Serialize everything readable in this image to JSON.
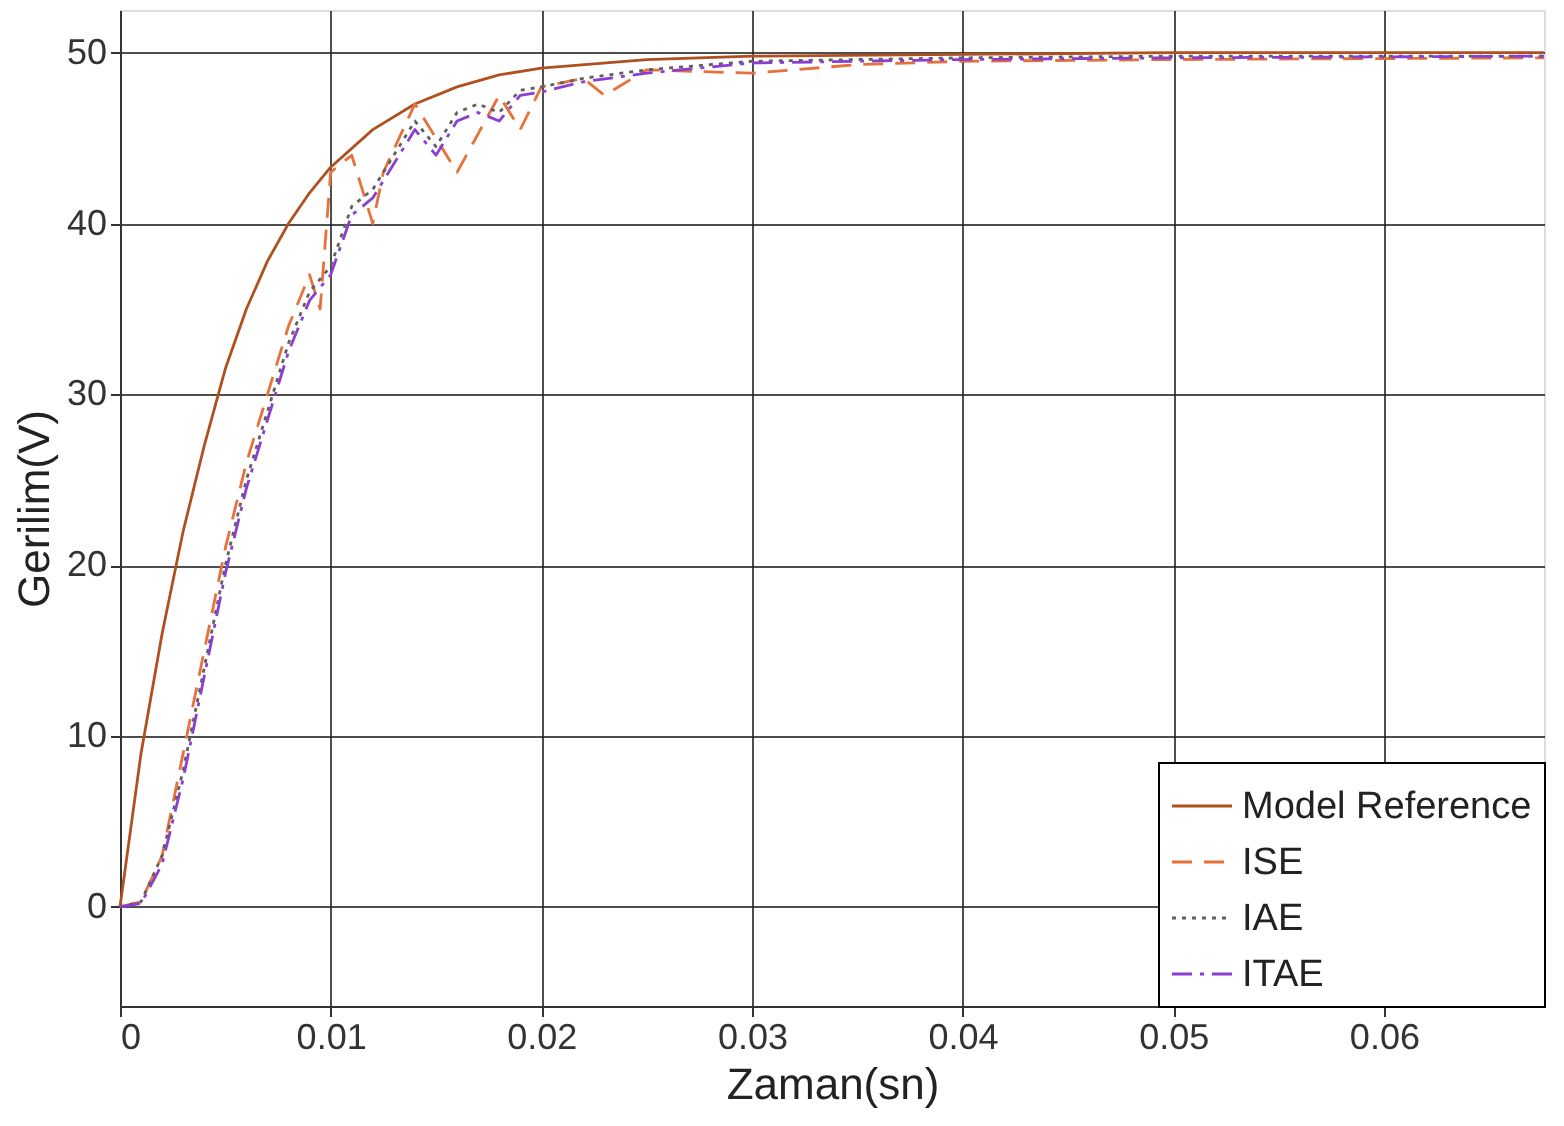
{
  "chart_data": {
    "type": "line",
    "xlabel": "Zaman(sn)",
    "ylabel": "Gerilim(V)",
    "xlim": [
      0,
      0.0676
    ],
    "ylim": [
      -5.8,
      52.5
    ],
    "xticks": [
      0,
      0.01,
      0.02,
      0.03,
      0.04,
      0.05,
      0.06
    ],
    "yticks": [
      0,
      10,
      20,
      30,
      40,
      50
    ],
    "grid": true,
    "legend": "bottom right",
    "marker": "none",
    "series": [
      {
        "name": "Model Reference",
        "color": "#b0501e",
        "line_style": "solid",
        "x": [
          0,
          0.001,
          0.002,
          0.003,
          0.004,
          0.005,
          0.006,
          0.007,
          0.008,
          0.009,
          0.01,
          0.012,
          0.014,
          0.016,
          0.018,
          0.02,
          0.025,
          0.03,
          0.04,
          0.05,
          0.0676
        ],
        "values": [
          0,
          9,
          16,
          22,
          27,
          31.5,
          35,
          37.8,
          40,
          41.8,
          43.3,
          45.5,
          47,
          48,
          48.7,
          49.1,
          49.6,
          49.8,
          49.9,
          50,
          50
        ]
      },
      {
        "name": "ISE",
        "color": "#e8703a",
        "line_style": "dashed",
        "x": [
          0,
          0.001,
          0.002,
          0.003,
          0.004,
          0.005,
          0.006,
          0.007,
          0.008,
          0.009,
          0.0095,
          0.01,
          0.011,
          0.012,
          0.0125,
          0.014,
          0.015,
          0.016,
          0.018,
          0.019,
          0.02,
          0.022,
          0.023,
          0.025,
          0.03,
          0.035,
          0.04,
          0.05,
          0.0676
        ],
        "values": [
          0,
          0.3,
          3,
          9,
          15,
          21,
          26,
          30,
          34,
          37,
          35,
          43,
          44,
          40,
          43,
          47,
          45,
          43,
          47.5,
          45.5,
          48,
          48.5,
          47.5,
          49,
          48.8,
          49.3,
          49.5,
          49.6,
          49.7
        ]
      },
      {
        "name": "IAE",
        "color": "#606060",
        "line_style": "dotted",
        "x": [
          0,
          0.001,
          0.002,
          0.003,
          0.004,
          0.005,
          0.006,
          0.007,
          0.008,
          0.009,
          0.01,
          0.011,
          0.012,
          0.013,
          0.014,
          0.015,
          0.016,
          0.017,
          0.018,
          0.019,
          0.02,
          0.022,
          0.025,
          0.03,
          0.04,
          0.05,
          0.0676
        ],
        "values": [
          0,
          0.3,
          3,
          8,
          14,
          20,
          25,
          29,
          33,
          36,
          37.5,
          41,
          42,
          44,
          46,
          44.5,
          46.5,
          47,
          46.5,
          47.8,
          48,
          48.5,
          49,
          49.5,
          49.7,
          49.8,
          49.8
        ]
      },
      {
        "name": "ITAE",
        "color": "#8a3fd1",
        "line_style": "dashdot",
        "x": [
          0,
          0.001,
          0.002,
          0.003,
          0.004,
          0.005,
          0.006,
          0.007,
          0.008,
          0.009,
          0.01,
          0.011,
          0.012,
          0.013,
          0.014,
          0.015,
          0.016,
          0.017,
          0.018,
          0.019,
          0.02,
          0.022,
          0.025,
          0.03,
          0.04,
          0.05,
          0.0676
        ],
        "values": [
          0,
          0.2,
          2.5,
          7.5,
          13.5,
          19.5,
          24.5,
          28.5,
          32.5,
          35.5,
          37,
          40.5,
          41.5,
          43.5,
          45.5,
          44,
          46,
          46.5,
          46,
          47.5,
          47.7,
          48.3,
          48.8,
          49.4,
          49.6,
          49.7,
          49.8
        ]
      }
    ]
  }
}
